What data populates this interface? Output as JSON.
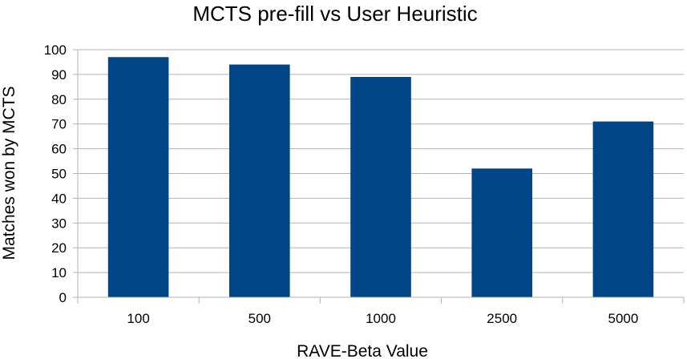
{
  "chart_data": {
    "type": "bar",
    "title": "MCTS pre-fill vs User Heuristic",
    "xlabel": "RAVE-Beta Value",
    "ylabel": "Matches won by MCTS",
    "categories": [
      "100",
      "500",
      "1000",
      "2500",
      "5000"
    ],
    "values": [
      97,
      94,
      89,
      52,
      71
    ],
    "ylim": [
      0,
      100
    ],
    "yticks": [
      0,
      10,
      20,
      30,
      40,
      50,
      60,
      70,
      80,
      90,
      100
    ],
    "grid": true,
    "bar_color": "#004586",
    "grid_color": "#b3b3b3"
  }
}
